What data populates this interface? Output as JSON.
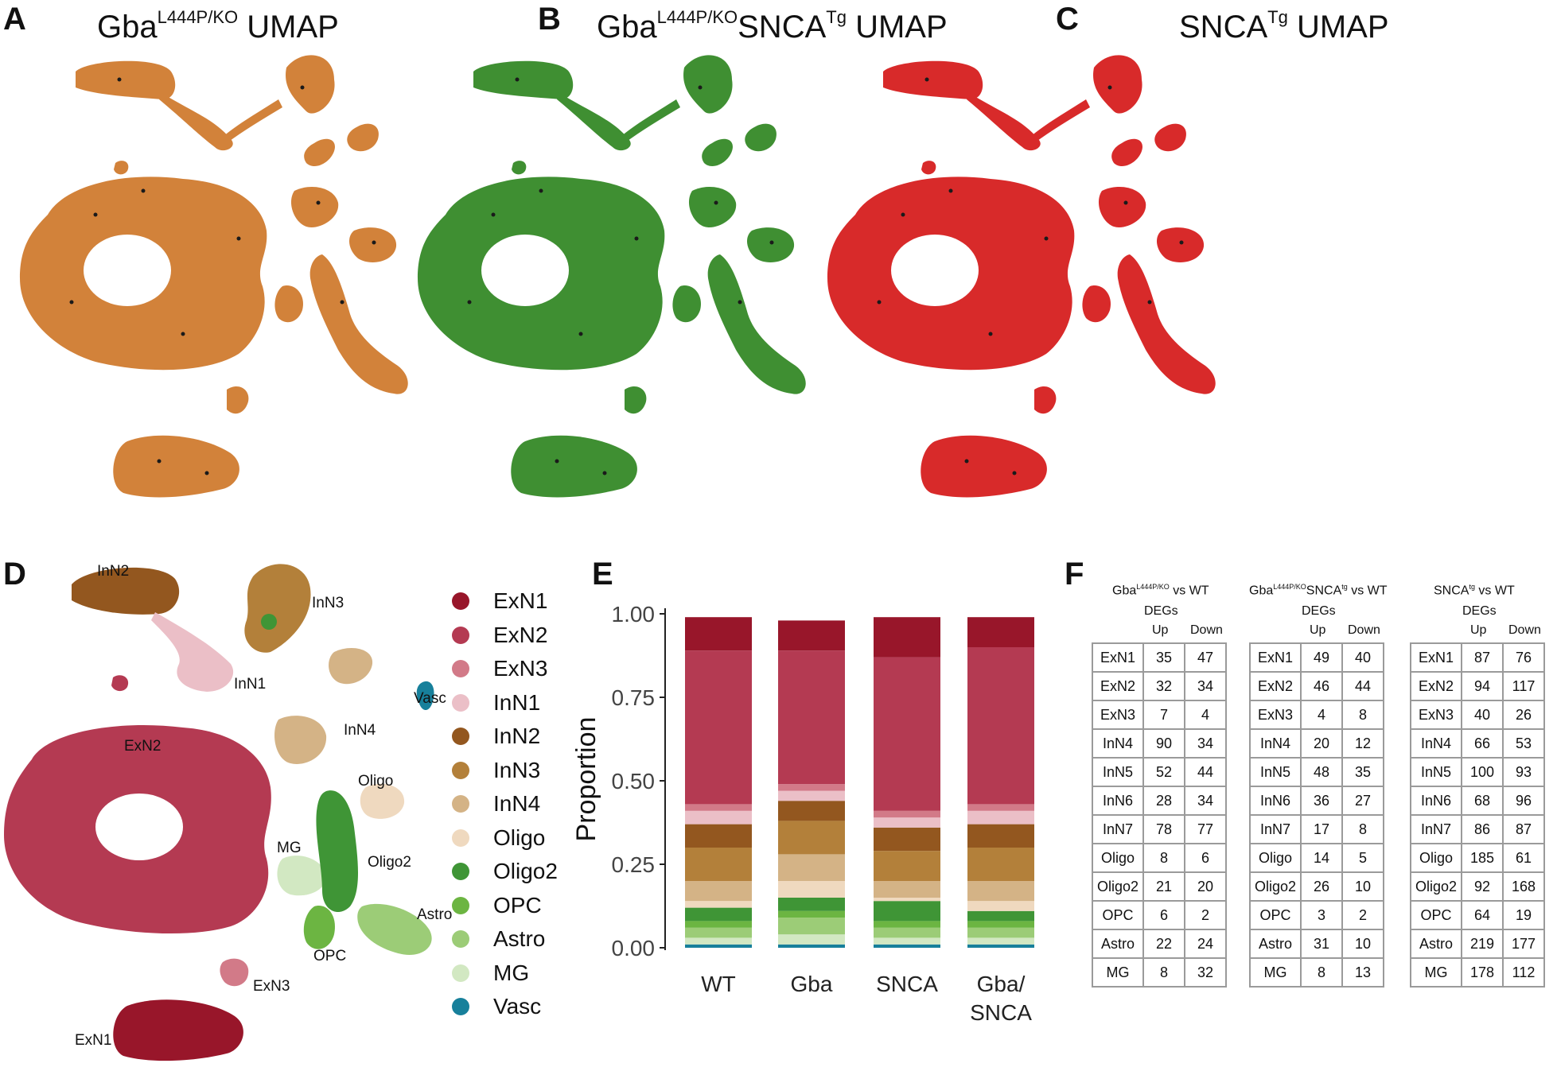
{
  "panels": {
    "A": {
      "letter": "A",
      "title_main": "Gba",
      "title_sup": "L444P/KO",
      "title_tail": " UMAP",
      "color": "#d2823a"
    },
    "B": {
      "letter": "B",
      "title_main": "Gba",
      "title_sup": "L444P/KO",
      "title_mid": "SNCA",
      "title_sup2": "Tg",
      "title_tail": "  UMAP",
      "color": "#3f8f32"
    },
    "C": {
      "letter": "C",
      "title_main": "SNCA",
      "title_sup": "Tg",
      "title_tail": " UMAP",
      "color": "#d82a2a"
    },
    "D": {
      "letter": "D"
    },
    "E": {
      "letter": "E"
    },
    "F": {
      "letter": "F"
    }
  },
  "cluster_labels": {
    "InN2": "InN2",
    "InN3": "InN3",
    "InN1": "InN1",
    "InN4": "InN4",
    "Vasc": "Vasc",
    "ExN2": "ExN2",
    "Oligo": "Oligo",
    "MG": "MG",
    "Oligo2": "Oligo2",
    "Astro": "Astro",
    "OPC": "OPC",
    "ExN3": "ExN3",
    "ExN1": "ExN1"
  },
  "legend": [
    {
      "label": "ExN1",
      "color": "#98162a"
    },
    {
      "label": "ExN2",
      "color": "#b43a52"
    },
    {
      "label": "ExN3",
      "color": "#d27a88"
    },
    {
      "label": "InN1",
      "color": "#ebbfc7"
    },
    {
      "label": "InN2",
      "color": "#93571f"
    },
    {
      "label": "InN3",
      "color": "#b3803a"
    },
    {
      "label": "InN4",
      "color": "#d4b386"
    },
    {
      "label": "Oligo",
      "color": "#efd9bf"
    },
    {
      "label": "Oligo2",
      "color": "#3f9536"
    },
    {
      "label": "OPC",
      "color": "#6cb542"
    },
    {
      "label": "Astro",
      "color": "#9ccc77"
    },
    {
      "label": "MG",
      "color": "#d2e8c2"
    },
    {
      "label": "Vasc",
      "color": "#17809b"
    }
  ],
  "chart_data": {
    "type": "bar",
    "stacked": true,
    "categories": [
      "WT",
      "Gba",
      "SNCA",
      "Gba/\nSNCA"
    ],
    "category_lines": [
      [
        "WT"
      ],
      [
        "Gba"
      ],
      [
        "SNCA"
      ],
      [
        "Gba/",
        "SNCA"
      ]
    ],
    "ylabel": "Proportion",
    "ylim": [
      0,
      1
    ],
    "yticks": [
      "0.00",
      "0.25",
      "0.50",
      "0.75",
      "1.00"
    ],
    "series": [
      {
        "name": "Vasc",
        "color": "#17809b",
        "values": [
          0.01,
          0.01,
          0.01,
          0.01
        ]
      },
      {
        "name": "MG",
        "color": "#d2e8c2",
        "values": [
          0.02,
          0.03,
          0.02,
          0.02
        ]
      },
      {
        "name": "Astro",
        "color": "#9ccc77",
        "values": [
          0.03,
          0.05,
          0.03,
          0.03
        ]
      },
      {
        "name": "OPC",
        "color": "#6cb542",
        "values": [
          0.02,
          0.02,
          0.02,
          0.02
        ]
      },
      {
        "name": "Oligo2",
        "color": "#3f9536",
        "values": [
          0.04,
          0.04,
          0.06,
          0.03
        ]
      },
      {
        "name": "Oligo",
        "color": "#efd9bf",
        "values": [
          0.02,
          0.05,
          0.01,
          0.03
        ]
      },
      {
        "name": "InN4",
        "color": "#d4b386",
        "values": [
          0.06,
          0.08,
          0.05,
          0.06
        ]
      },
      {
        "name": "InN3",
        "color": "#b3803a",
        "values": [
          0.1,
          0.1,
          0.09,
          0.1
        ]
      },
      {
        "name": "InN2",
        "color": "#93571f",
        "values": [
          0.07,
          0.06,
          0.07,
          0.07
        ]
      },
      {
        "name": "InN1",
        "color": "#ebbfc7",
        "values": [
          0.04,
          0.03,
          0.03,
          0.04
        ]
      },
      {
        "name": "ExN3",
        "color": "#d27a88",
        "values": [
          0.02,
          0.02,
          0.02,
          0.02
        ]
      },
      {
        "name": "ExN2",
        "color": "#b43a52",
        "values": [
          0.46,
          0.4,
          0.46,
          0.47
        ]
      },
      {
        "name": "ExN1",
        "color": "#98162a",
        "values": [
          0.1,
          0.09,
          0.12,
          0.09
        ]
      }
    ]
  },
  "deg_tables": [
    {
      "head_main": "Gba",
      "head_sup": "L444P/KO",
      "head_mid": "",
      "head_sup2": "",
      "head_tail": "vs WT",
      "degs": "DEGs",
      "up": "Up",
      "down": "Down",
      "rows": [
        [
          "ExN1",
          "35",
          "47"
        ],
        [
          "ExN2",
          "32",
          "34"
        ],
        [
          "ExN3",
          "7",
          "4"
        ],
        [
          "InN4",
          "90",
          "34"
        ],
        [
          "InN5",
          "52",
          "44"
        ],
        [
          "InN6",
          "28",
          "34"
        ],
        [
          "InN7",
          "78",
          "77"
        ],
        [
          "Oligo",
          "8",
          "6"
        ],
        [
          "Oligo2",
          "21",
          "20"
        ],
        [
          "OPC",
          "6",
          "2"
        ],
        [
          "Astro",
          "22",
          "24"
        ],
        [
          "MG",
          "8",
          "32"
        ]
      ]
    },
    {
      "head_main": "Gba",
      "head_sup": "L444P/KO",
      "head_mid": "SNCA",
      "head_sup2": "tg",
      "head_tail": "vs WT",
      "degs": "DEGs",
      "up": "Up",
      "down": "Down",
      "rows": [
        [
          "ExN1",
          "49",
          "40"
        ],
        [
          "ExN2",
          "46",
          "44"
        ],
        [
          "ExN3",
          "4",
          "8"
        ],
        [
          "InN4",
          "20",
          "12"
        ],
        [
          "InN5",
          "48",
          "35"
        ],
        [
          "InN6",
          "36",
          "27"
        ],
        [
          "InN7",
          "17",
          "8"
        ],
        [
          "Oligo",
          "14",
          "5"
        ],
        [
          "Oligo2",
          "26",
          "10"
        ],
        [
          "OPC",
          "3",
          "2"
        ],
        [
          "Astro",
          "31",
          "10"
        ],
        [
          "MG",
          "8",
          "13"
        ]
      ]
    },
    {
      "head_main": "SNCA",
      "head_sup": "tg",
      "head_mid": "",
      "head_sup2": "",
      "head_tail": "vs WT",
      "degs": "DEGs",
      "up": "Up",
      "down": "Down",
      "rows": [
        [
          "ExN1",
          "87",
          "76"
        ],
        [
          "ExN2",
          "94",
          "117"
        ],
        [
          "ExN3",
          "40",
          "26"
        ],
        [
          "InN4",
          "66",
          "53"
        ],
        [
          "InN5",
          "100",
          "93"
        ],
        [
          "InN6",
          "68",
          "96"
        ],
        [
          "InN7",
          "86",
          "87"
        ],
        [
          "Oligo",
          "185",
          "61"
        ],
        [
          "Oligo2",
          "92",
          "168"
        ],
        [
          "OPC",
          "64",
          "19"
        ],
        [
          "Astro",
          "219",
          "177"
        ],
        [
          "MG",
          "178",
          "112"
        ]
      ]
    }
  ]
}
